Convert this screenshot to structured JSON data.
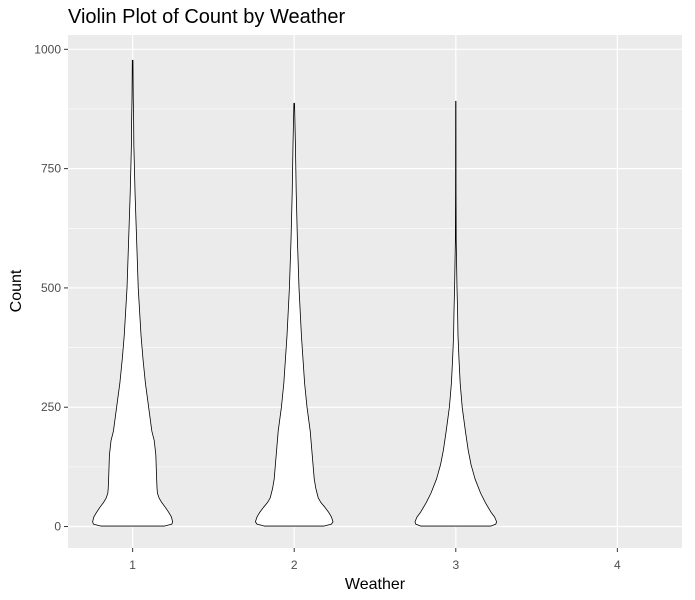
{
  "chart_data": {
    "type": "violin",
    "title": "Violin Plot of Count by Weather",
    "xlabel": "Weather",
    "ylabel": "Count",
    "categories": [
      "1",
      "2",
      "3",
      "4"
    ],
    "ylim": [
      -45,
      1030
    ],
    "yticks": [
      0,
      250,
      500,
      750,
      1000
    ],
    "grid": true,
    "colors": {
      "panel": "#ebebeb",
      "grid_major": "#ffffff",
      "violin_fill": "#ffffff",
      "violin_stroke": "#000000",
      "tick_label": "#4d4d4d",
      "tick_mark": "#333333"
    },
    "violins": [
      {
        "category": "1",
        "min": 1,
        "max": 977,
        "density": [
          [
            1,
            0.8
          ],
          [
            5,
            0.98
          ],
          [
            10,
            1.0
          ],
          [
            20,
            0.97
          ],
          [
            30,
            0.9
          ],
          [
            40,
            0.82
          ],
          [
            50,
            0.73
          ],
          [
            60,
            0.66
          ],
          [
            70,
            0.62
          ],
          [
            80,
            0.61
          ],
          [
            100,
            0.6
          ],
          [
            150,
            0.58
          ],
          [
            180,
            0.54
          ],
          [
            200,
            0.48
          ],
          [
            250,
            0.4
          ],
          [
            300,
            0.32
          ],
          [
            350,
            0.26
          ],
          [
            400,
            0.21
          ],
          [
            500,
            0.14
          ],
          [
            600,
            0.1
          ],
          [
            700,
            0.06
          ],
          [
            800,
            0.03
          ],
          [
            850,
            0.025
          ],
          [
            900,
            0.015
          ],
          [
            977,
            0.008
          ]
        ]
      },
      {
        "category": "2",
        "min": 1,
        "max": 887,
        "density": [
          [
            1,
            0.75
          ],
          [
            5,
            0.93
          ],
          [
            10,
            0.97
          ],
          [
            20,
            0.93
          ],
          [
            30,
            0.86
          ],
          [
            40,
            0.77
          ],
          [
            50,
            0.67
          ],
          [
            60,
            0.6
          ],
          [
            80,
            0.54
          ],
          [
            100,
            0.5
          ],
          [
            150,
            0.45
          ],
          [
            200,
            0.4
          ],
          [
            250,
            0.32
          ],
          [
            300,
            0.26
          ],
          [
            400,
            0.18
          ],
          [
            500,
            0.12
          ],
          [
            600,
            0.08
          ],
          [
            700,
            0.05
          ],
          [
            800,
            0.03
          ],
          [
            887,
            0.008
          ]
        ]
      },
      {
        "category": "3",
        "min": 1,
        "max": 891,
        "density": [
          [
            1,
            0.88
          ],
          [
            5,
            1.0
          ],
          [
            10,
            1.02
          ],
          [
            20,
            0.97
          ],
          [
            30,
            0.88
          ],
          [
            50,
            0.74
          ],
          [
            70,
            0.62
          ],
          [
            100,
            0.48
          ],
          [
            130,
            0.38
          ],
          [
            160,
            0.31
          ],
          [
            200,
            0.24
          ],
          [
            250,
            0.16
          ],
          [
            300,
            0.11
          ],
          [
            350,
            0.08
          ],
          [
            400,
            0.055
          ],
          [
            450,
            0.045
          ],
          [
            500,
            0.03
          ],
          [
            600,
            0.01
          ],
          [
            700,
            0.006
          ],
          [
            891,
            0.004
          ]
        ]
      }
    ]
  }
}
